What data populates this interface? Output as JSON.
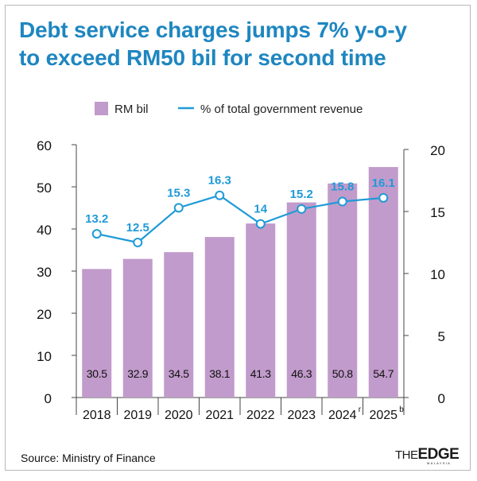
{
  "title_lines": [
    "Debt service charges jumps 7% y-o-y",
    "to exceed RM50 bil for second time"
  ],
  "source": "Source: Ministry of Finance",
  "logo": {
    "the": "THE",
    "edge": "EDGE",
    "sub": "MALAYSIA"
  },
  "colors": {
    "bar": "#c19bcb",
    "line": "#1f9ad8",
    "title": "#1e86c0",
    "axis": "#555555"
  },
  "chart_data": {
    "type": "bar",
    "categories": [
      "2018",
      "2019",
      "2020",
      "2021",
      "2022",
      "2023",
      "2024",
      "2025"
    ],
    "category_superscripts": [
      "",
      "",
      "",
      "",
      "",
      "",
      "r",
      "b"
    ],
    "series": [
      {
        "name": "RM bil",
        "type": "bar",
        "axis": "left",
        "values": [
          30.5,
          32.9,
          34.5,
          38.1,
          41.3,
          46.3,
          50.8,
          54.7
        ]
      },
      {
        "name": "% of total government revenue",
        "type": "line",
        "axis": "right",
        "values": [
          13.2,
          12.5,
          15.3,
          16.3,
          14,
          15.2,
          15.8,
          16.1
        ]
      }
    ],
    "bar_labels": [
      "30.5",
      "32.9",
      "34.5",
      "38.1",
      "41.3",
      "46.3",
      "50.8",
      "54.7"
    ],
    "line_labels": [
      "13.2",
      "12.5",
      "15.3",
      "16.3",
      "14",
      "15.2",
      "15.8",
      "16.1"
    ],
    "y_left": {
      "min": 0,
      "max": 60,
      "ticks": [
        "0",
        "10",
        "20",
        "30",
        "40",
        "50",
        "60"
      ]
    },
    "y_right": {
      "min": 0,
      "max": 20,
      "ticks": [
        "0",
        "5",
        "10",
        "15",
        "20"
      ]
    },
    "legend": {
      "bar_label": "RM bil",
      "line_label": "% of total government revenue",
      "position": "top"
    }
  }
}
